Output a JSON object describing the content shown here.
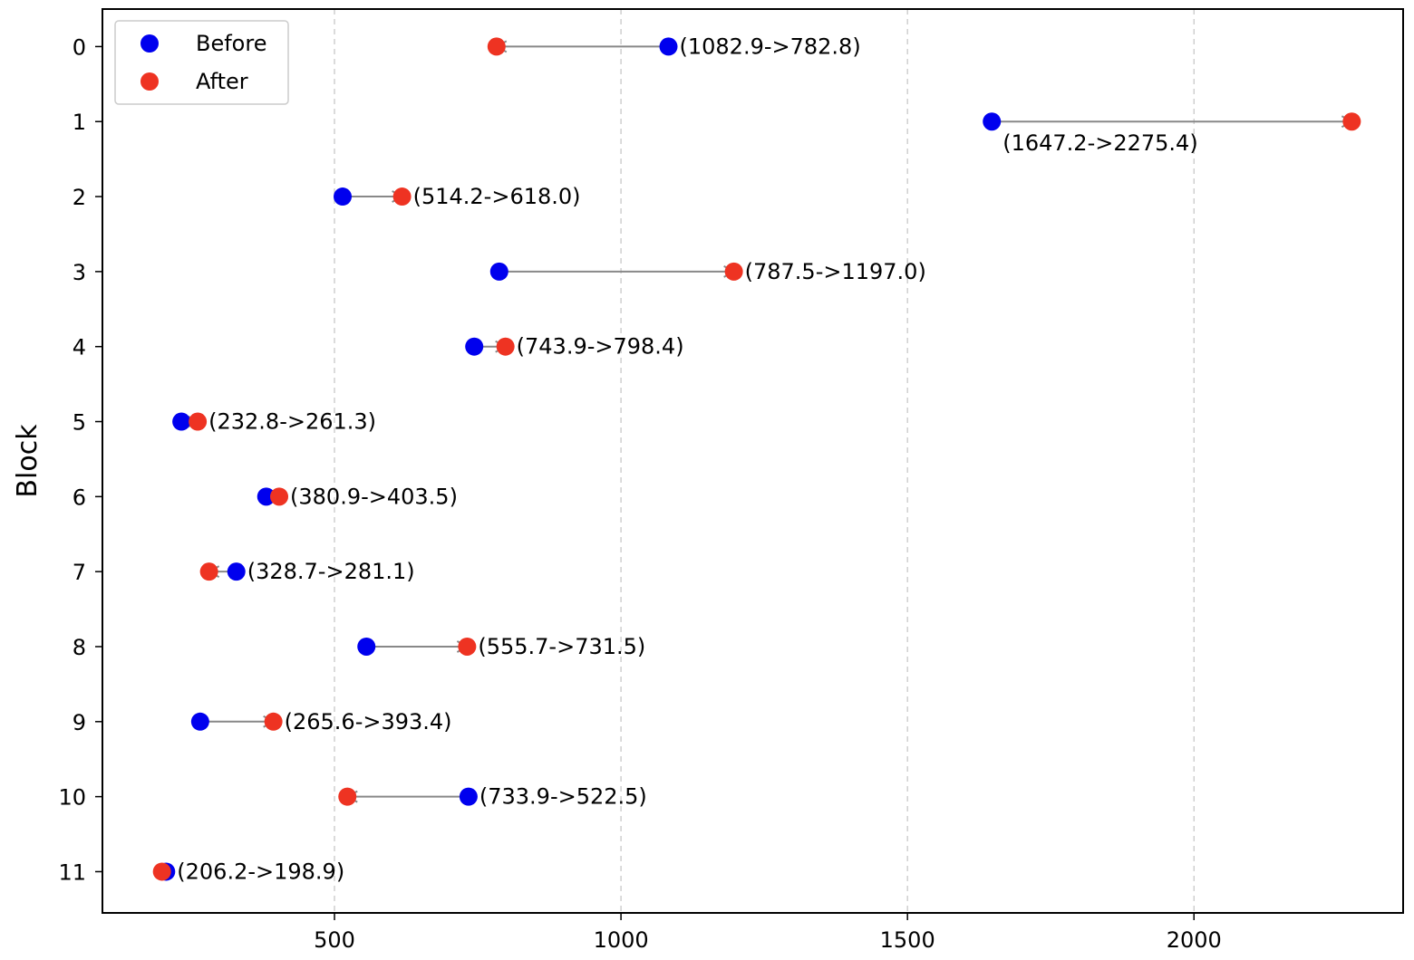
{
  "chart_data": {
    "type": "scatter",
    "title": "",
    "xlabel": "",
    "ylabel": "Block",
    "xlim": [
      95,
      2365
    ],
    "ylim": [
      -0.5,
      11.55
    ],
    "x_ticks": [
      500,
      1000,
      1500,
      2000
    ],
    "y_ticks": [
      0,
      1,
      2,
      3,
      4,
      5,
      6,
      7,
      8,
      9,
      10,
      11
    ],
    "y_inverted": true,
    "grid": "x, dashed",
    "legend_position": "top-left",
    "series": [
      {
        "name": "Before",
        "color": "#0000ee",
        "values": [
          1082.9,
          1647.2,
          514.2,
          787.5,
          743.9,
          232.8,
          380.9,
          328.7,
          555.7,
          265.6,
          733.9,
          206.2
        ]
      },
      {
        "name": "After",
        "color": "#ee3322",
        "values": [
          782.8,
          2275.4,
          618.0,
          1197.0,
          798.4,
          261.3,
          403.5,
          281.1,
          731.5,
          393.4,
          522.5,
          198.9
        ]
      }
    ],
    "annotations": [
      "(1082.9->782.8)",
      "(1647.2->2275.4)",
      "(514.2->618.0)",
      "(787.5->1197.0)",
      "(743.9->798.4)",
      "(232.8->261.3)",
      "(380.9->403.5)",
      "(328.7->281.1)",
      "(555.7->731.5)",
      "(265.6->393.4)",
      "(733.9->522.5)",
      "(206.2->198.9)"
    ],
    "arrow_color": "#888888"
  }
}
